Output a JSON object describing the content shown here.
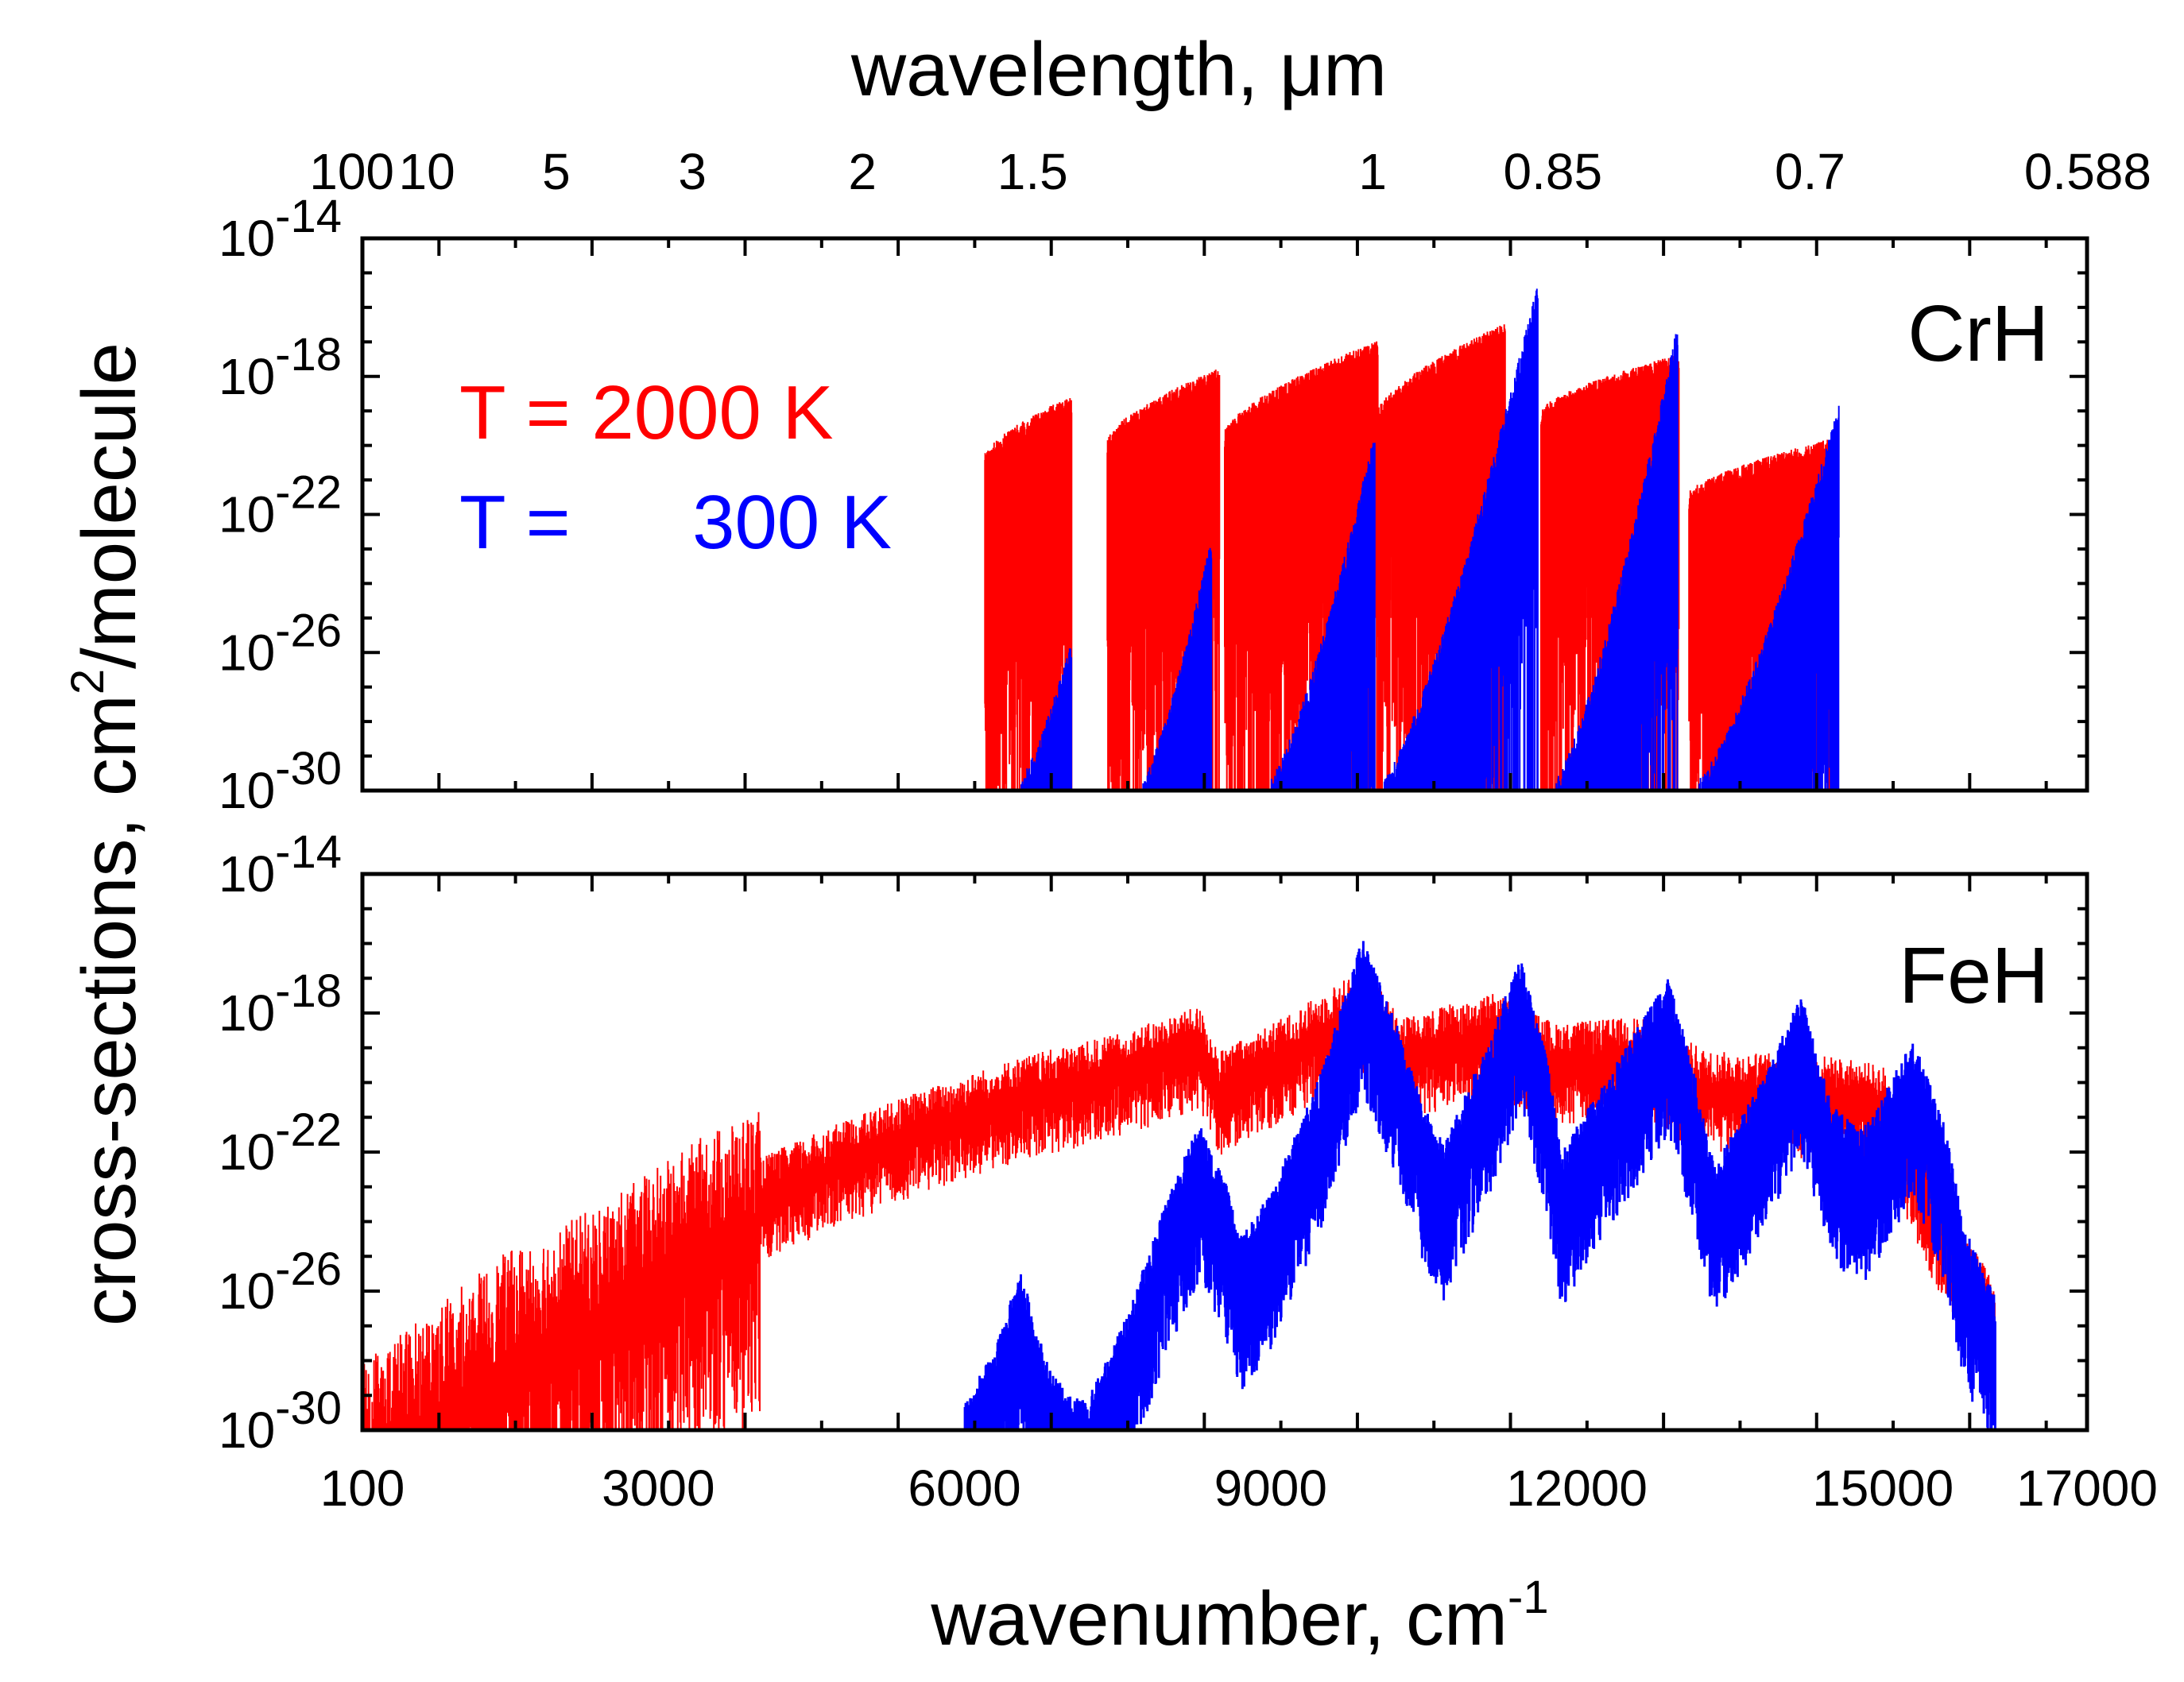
{
  "chart_data": {
    "type": "line",
    "top_axis": {
      "title": "wavelength, μm",
      "tick_labels": [
        "100",
        "10",
        "5",
        "3",
        "2",
        "1.5",
        "1",
        "0.85",
        "0.7",
        "0.588"
      ],
      "tick_wavenumbers": [
        100,
        1000,
        2000,
        3333,
        5000,
        6667,
        10000,
        11765,
        14286,
        17007
      ]
    },
    "x_axis": {
      "title": "wavenumber, cm",
      "title_sup": "-1",
      "tick_labels": [
        "100",
        "3000",
        "6000",
        "9000",
        "12000",
        "15000",
        "17000"
      ],
      "tick_values": [
        100,
        3000,
        6000,
        9000,
        12000,
        15000,
        17000
      ],
      "range": [
        100,
        17000
      ]
    },
    "y_axis": {
      "title_part1": "cross-sections, cm",
      "title_sup": "2",
      "title_part2": "/molecule",
      "scale": "log",
      "range_exponents": [
        -30,
        -14
      ],
      "tick_base": "10",
      "tick_exponents": [
        "-14",
        "-18",
        "-22",
        "-26",
        "-30"
      ]
    },
    "legend": {
      "position": "top-left (upper panel)",
      "entries": [
        {
          "prefix": "T = ",
          "value": "2000 K",
          "color": "#ff0000"
        },
        {
          "prefix": "T = ",
          "value": "300 K",
          "color": "#0000ff"
        }
      ]
    },
    "panels": [
      {
        "label": "CrH",
        "series": [
          {
            "name": "T = 2000 K",
            "color": "#ff0000",
            "bands": [
              {
                "x0": 6200,
                "x1": 7050,
                "y0": -20.5,
                "y1": -18.8
              },
              {
                "x0": 7400,
                "x1": 8500,
                "y0": -20.0,
                "y1": -18.0
              },
              {
                "x0": 8550,
                "x1": 10050,
                "y0": -19.8,
                "y1": -17.2
              },
              {
                "x0": 10050,
                "x1": 11300,
                "y0": -19.2,
                "y1": -16.7
              },
              {
                "x0": 11650,
                "x1": 13000,
                "y0": -19.2,
                "y1": -17.6
              },
              {
                "x0": 13100,
                "x1": 14550,
                "y0": -21.6,
                "y1": -20.0
              }
            ]
          },
          {
            "name": "T = 300 K",
            "color": "#0000ff",
            "bands": [
              {
                "x0": 6550,
                "x1": 7050,
                "y_peak": -26.0
              },
              {
                "x0": 7750,
                "x1": 8420,
                "y_peak": -23.0
              },
              {
                "x0": 9000,
                "x1": 10020,
                "y_peak": -20.0
              },
              {
                "x0": 10100,
                "x1": 11620,
                "y_peak": -15.6
              },
              {
                "x0": 11800,
                "x1": 12990,
                "y_peak": -16.8
              },
              {
                "x0": 13200,
                "x1": 14570,
                "y_peak": -19.2
              }
            ]
          }
        ]
      },
      {
        "label": "FeH",
        "series": [
          {
            "name": "T = 2000 K",
            "color": "#ff0000",
            "envelope": [
              [
                100,
                -30
              ],
              [
                600,
                -29
              ],
              [
                1500,
                -27
              ],
              [
                2500,
                -25.5
              ],
              [
                3500,
                -23.5
              ],
              [
                4500,
                -22.2
              ],
              [
                5500,
                -21.0
              ],
              [
                6500,
                -20.0
              ],
              [
                7500,
                -19.3
              ],
              [
                8300,
                -18.5
              ],
              [
                8500,
                -19.8
              ],
              [
                9200,
                -18.7
              ],
              [
                9900,
                -17.4
              ],
              [
                10300,
                -18.8
              ],
              [
                11200,
                -18.1
              ],
              [
                11800,
                -19.0
              ],
              [
                12600,
                -18.8
              ],
              [
                13300,
                -19.8
              ],
              [
                14400,
                -19.9
              ],
              [
                15000,
                -20.2
              ],
              [
                15500,
                -23.5
              ],
              [
                15900,
                -25.5
              ],
              [
                16100,
                -26.5
              ]
            ]
          },
          {
            "name": "T = 300 K",
            "color": "#0000ff",
            "envelope": [
              [
                6000,
                -30
              ],
              [
                6300,
                -28.5
              ],
              [
                6550,
                -26.2
              ],
              [
                6800,
                -28.8
              ],
              [
                7000,
                -29.8
              ],
              [
                7200,
                -30.0
              ],
              [
                7600,
                -27.5
              ],
              [
                8000,
                -24.0
              ],
              [
                8300,
                -22.0
              ],
              [
                8550,
                -23.6
              ],
              [
                8700,
                -25.3
              ],
              [
                9000,
                -24.0
              ],
              [
                9500,
                -20.5
              ],
              [
                9900,
                -16.6
              ],
              [
                10200,
                -18.8
              ],
              [
                10500,
                -21.5
              ],
              [
                10700,
                -22.6
              ],
              [
                11150,
                -19.5
              ],
              [
                11450,
                -17.2
              ],
              [
                11700,
                -20.0
              ],
              [
                11850,
                -22.8
              ],
              [
                12350,
                -20.4
              ],
              [
                12900,
                -17.8
              ],
              [
                13150,
                -20.5
              ],
              [
                13350,
                -23.2
              ],
              [
                13800,
                -20.8
              ],
              [
                14200,
                -18.3
              ],
              [
                14500,
                -21.5
              ],
              [
                14800,
                -22.2
              ],
              [
                15300,
                -19.6
              ],
              [
                15600,
                -22.0
              ],
              [
                15800,
                -25.0
              ],
              [
                16100,
                -27.0
              ]
            ]
          }
        ]
      }
    ]
  }
}
